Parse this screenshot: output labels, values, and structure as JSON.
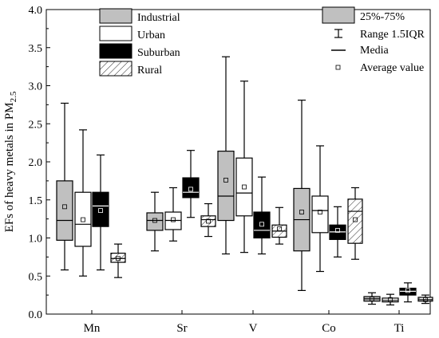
{
  "chart_data": {
    "type": "boxplot",
    "title": "",
    "xlabel": "",
    "ylabel_main": "EFs of heavy metals in PM",
    "ylabel_sub": "2.5",
    "ylim": [
      0,
      4.0
    ],
    "y_ticks": [
      "0.0",
      "0.5",
      "1.0",
      "1.5",
      "2.0",
      "2.5",
      "3.0",
      "3.5",
      "4.0"
    ],
    "categories": [
      "Mn",
      "Sr",
      "V",
      "Co",
      "Ti"
    ],
    "series": [
      {
        "name": "Industrial",
        "fill": "#c0c0c0",
        "hatch": false,
        "stats": [
          {
            "min": 0.58,
            "q1": 0.97,
            "median": 1.23,
            "q3": 1.75,
            "max": 2.77,
            "mean": 1.41
          },
          {
            "min": 0.83,
            "q1": 1.1,
            "median": 1.23,
            "q3": 1.33,
            "max": 1.6,
            "mean": 1.23
          },
          {
            "min": 0.79,
            "q1": 1.23,
            "median": 1.55,
            "q3": 2.14,
            "max": 3.38,
            "mean": 1.76
          },
          {
            "min": 0.31,
            "q1": 0.83,
            "median": 1.24,
            "q3": 1.65,
            "max": 2.81,
            "mean": 1.34
          },
          {
            "min": 0.13,
            "q1": 0.17,
            "median": 0.2,
            "q3": 0.23,
            "max": 0.28,
            "mean": 0.2
          }
        ]
      },
      {
        "name": "Urban",
        "fill": "#ffffff",
        "hatch": false,
        "stats": [
          {
            "min": 0.5,
            "q1": 0.89,
            "median": 1.18,
            "q3": 1.6,
            "max": 2.42,
            "mean": 1.24
          },
          {
            "min": 0.96,
            "q1": 1.11,
            "median": 1.23,
            "q3": 1.34,
            "max": 1.66,
            "mean": 1.24
          },
          {
            "min": 0.81,
            "q1": 1.29,
            "median": 1.59,
            "q3": 2.05,
            "max": 3.06,
            "mean": 1.67
          },
          {
            "min": 0.56,
            "q1": 1.07,
            "median": 1.36,
            "q3": 1.55,
            "max": 2.21,
            "mean": 1.34
          },
          {
            "min": 0.12,
            "q1": 0.16,
            "median": 0.18,
            "q3": 0.21,
            "max": 0.26,
            "mean": 0.19
          }
        ]
      },
      {
        "name": "Suburban",
        "fill": "#000000",
        "hatch": false,
        "stats": [
          {
            "min": 0.58,
            "q1": 1.15,
            "median": 1.42,
            "q3": 1.6,
            "max": 2.09,
            "mean": 1.36
          },
          {
            "min": 1.27,
            "q1": 1.53,
            "median": 1.6,
            "q3": 1.79,
            "max": 2.15,
            "mean": 1.64
          },
          {
            "min": 0.79,
            "q1": 1.0,
            "median": 1.1,
            "q3": 1.34,
            "max": 1.8,
            "mean": 1.18
          },
          {
            "min": 0.75,
            "q1": 0.98,
            "median": 1.08,
            "q3": 1.17,
            "max": 1.41,
            "mean": 1.1
          },
          {
            "min": 0.16,
            "q1": 0.25,
            "median": 0.3,
            "q3": 0.34,
            "max": 0.41,
            "mean": 0.31
          }
        ]
      },
      {
        "name": "Rural",
        "fill": "#ffffff",
        "hatch": true,
        "stats": [
          {
            "min": 0.48,
            "q1": 0.68,
            "median": 0.73,
            "q3": 0.8,
            "max": 0.92,
            "mean": 0.73
          },
          {
            "min": 1.02,
            "q1": 1.15,
            "median": 1.24,
            "q3": 1.29,
            "max": 1.45,
            "mean": 1.22
          },
          {
            "min": 0.92,
            "q1": 1.01,
            "median": 1.09,
            "q3": 1.17,
            "max": 1.4,
            "mean": 1.12
          },
          {
            "min": 0.72,
            "q1": 0.93,
            "median": 1.35,
            "q3": 1.51,
            "max": 1.66,
            "mean": 1.24
          },
          {
            "min": 0.14,
            "q1": 0.17,
            "median": 0.19,
            "q3": 0.22,
            "max": 0.25,
            "mean": 0.19
          }
        ]
      }
    ],
    "legend_series_placement": "top-left",
    "legend_stats_placement": "top-right",
    "legend_stats": {
      "box": "25%-75%",
      "range": "Range 1.5IQR",
      "median": "Media",
      "mean": "Average value"
    },
    "grid": false
  }
}
